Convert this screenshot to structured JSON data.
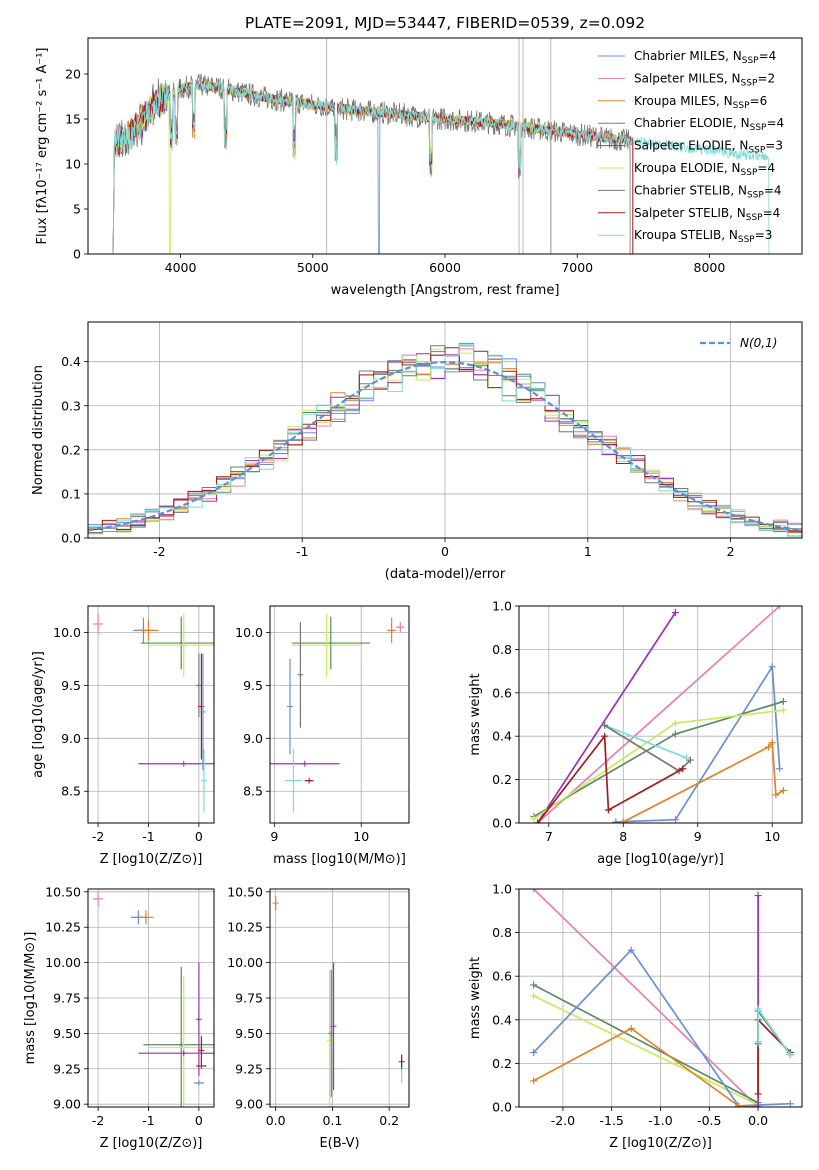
{
  "colors": {
    "Chabrier MILES": "#6a8fd6",
    "Salpeter MILES": "#e77fb5",
    "Kroupa MILES": "#e0822c",
    "Chabrier ELODIE": "#5d8a64",
    "Salpeter ELODIE": "#9b2fb8",
    "Kroupa ELODIE": "#c8ec5a",
    "Chabrier STELIB": "#767676",
    "Salpeter STELIB": "#a61c1c",
    "Kroupa STELIB": "#7fdcd8",
    "normal": "#5b8fd6"
  },
  "chart_data": [
    {
      "id": "spectrum",
      "type": "line",
      "title": "PLATE=2091, MJD=53447, FIBERID=0539, z=0.092",
      "xlabel": "wavelength [Angstrom, rest frame]",
      "ylabel": "Flux [fλ10⁻¹⁷ erg cm⁻² s⁻¹ A⁻¹]",
      "xlim": [
        3300,
        8700
      ],
      "ylim": [
        0,
        24
      ],
      "xticks": [
        4000,
        5000,
        6000,
        7000,
        8000
      ],
      "yticks": [
        0,
        5,
        10,
        15,
        20
      ],
      "legend_position": "upper right",
      "continuum_knots": {
        "x": [
          3500,
          3600,
          3700,
          3800,
          3900,
          4000,
          4100,
          4300,
          4500,
          4700,
          5000,
          5300,
          5600,
          6000,
          6400,
          6800,
          7200,
          7600,
          8000,
          8400
        ],
        "y": [
          12.4,
          12.8,
          14.5,
          16.4,
          17.5,
          18.3,
          18.8,
          18.5,
          17.8,
          17.2,
          16.6,
          16.0,
          15.6,
          15.0,
          14.5,
          13.7,
          12.9,
          12.2,
          11.5,
          10.8
        ]
      },
      "series": [
        {
          "name": "Chabrier MILES",
          "nssp": "4",
          "xmax": 7420
        },
        {
          "name": "Salpeter MILES",
          "nssp": "2",
          "xmax": 7420
        },
        {
          "name": "Kroupa MILES",
          "nssp": "6",
          "xmax": 7420
        },
        {
          "name": "Chabrier ELODIE",
          "nssp": "4",
          "xmax": 6800
        },
        {
          "name": "Salpeter ELODIE",
          "nssp": "3",
          "xmax": 6800
        },
        {
          "name": "Kroupa ELODIE",
          "nssp": "4",
          "xmax": 6800
        },
        {
          "name": "Chabrier STELIB",
          "nssp": "4",
          "xmax": 7400
        },
        {
          "name": "Salpeter STELIB",
          "nssp": "4",
          "xmax": 7420
        },
        {
          "name": "Kroupa STELIB",
          "nssp": "3",
          "xmax": 8450
        }
      ]
    },
    {
      "id": "residuals",
      "type": "histogram",
      "xlabel": "(data-model)/error",
      "ylabel": "Normed distribution",
      "xlim": [
        -2.5,
        2.5
      ],
      "ylim": [
        0,
        0.49
      ],
      "xticks": [
        -2,
        -1,
        0,
        1,
        2
      ],
      "yticks": [
        0.0,
        0.1,
        0.2,
        0.3,
        0.4
      ],
      "bin_width": 0.1,
      "legend_position": "upper right",
      "reference_curve": "N(0,1)"
    },
    {
      "id": "age_vs_Z",
      "type": "errorbar",
      "xlabel": "Z [log10(Z/Z⊙)]",
      "ylabel": "age [log10(age/yr)]",
      "xlim": [
        -2.2,
        0.3
      ],
      "ylim": [
        8.2,
        10.25
      ],
      "xticks": [
        -2,
        -1,
        0
      ],
      "yticks": [
        8.5,
        9.0,
        9.5,
        10.0
      ],
      "points": [
        {
          "s": "Salpeter MILES",
          "x": -2.0,
          "y": 10.08,
          "xe": 0.1,
          "ye": 0.1
        },
        {
          "s": "Chabrier MILES",
          "x": -1.1,
          "y": 10.02,
          "xe": 0.2,
          "ye": 0.12
        },
        {
          "s": "Kroupa MILES",
          "x": -1.0,
          "y": 10.02,
          "xe": 0.2,
          "ye": 0.1
        },
        {
          "s": "Chabrier ELODIE",
          "x": -0.35,
          "y": 9.9,
          "xe": 0.8,
          "ye": 0.25
        },
        {
          "s": "Kroupa ELODIE",
          "x": -0.3,
          "y": 9.88,
          "xe": 0.7,
          "ye": 0.3
        },
        {
          "s": "Salpeter ELODIE",
          "x": -0.3,
          "y": 8.76,
          "xe": 0.9,
          "ye": 0.0
        },
        {
          "s": "Chabrier STELIB",
          "x": 0.0,
          "y": 9.5,
          "xe": 0.0,
          "ye": 0.3
        },
        {
          "s": "Salpeter STELIB",
          "x": 0.05,
          "y": 9.3,
          "xe": 0.0,
          "ye": 0.5
        },
        {
          "s": "Kroupa STELIB",
          "x": 0.1,
          "y": 8.6,
          "xe": 0.05,
          "ye": 0.3
        },
        {
          "s": "Chabrier MILES",
          "x": 0.08,
          "y": 9.25,
          "xe": 0.0,
          "ye": 0.55
        }
      ]
    },
    {
      "id": "age_vs_mass",
      "type": "errorbar",
      "xlabel": "mass [log10(M/M⊙)]",
      "ylabel": "",
      "xlim": [
        8.95,
        10.55
      ],
      "ylim": [
        8.2,
        10.25
      ],
      "xticks": [
        9,
        10
      ],
      "yticks": [
        8.5,
        9.0,
        9.5,
        10.0
      ],
      "points": [
        {
          "s": "Salpeter MILES",
          "x": 10.45,
          "y": 10.05,
          "xe": 0.05,
          "ye": 0.05
        },
        {
          "s": "Kroupa MILES",
          "x": 10.35,
          "y": 10.02,
          "xe": 0.05,
          "ye": 0.12
        },
        {
          "s": "Chabrier ELODIE",
          "x": 9.65,
          "y": 9.9,
          "xe": 0.45,
          "ye": 0.25
        },
        {
          "s": "Kroupa ELODIE",
          "x": 9.6,
          "y": 9.88,
          "xe": 0.4,
          "ye": 0.3
        },
        {
          "s": "Salpeter ELODIE",
          "x": 9.35,
          "y": 8.76,
          "xe": 0.4,
          "ye": 0.0
        },
        {
          "s": "Chabrier MILES",
          "x": 9.18,
          "y": 9.3,
          "xe": 0.0,
          "ye": 0.45
        },
        {
          "s": "Kroupa STELIB",
          "x": 9.22,
          "y": 8.6,
          "xe": 0.1,
          "ye": 0.3
        },
        {
          "s": "Salpeter STELIB",
          "x": 9.4,
          "y": 8.6,
          "xe": 0.05,
          "ye": 0.0
        },
        {
          "s": "Chabrier STELIB",
          "x": 9.3,
          "y": 9.6,
          "xe": 0.0,
          "ye": 0.5
        }
      ]
    },
    {
      "id": "weight_vs_age",
      "type": "line",
      "xlabel": "age [log10(age/yr)]",
      "ylabel": "mass weight",
      "xlim": [
        6.6,
        10.4
      ],
      "ylim": [
        0,
        1.0
      ],
      "xticks": [
        7,
        8,
        9,
        10
      ],
      "yticks": [
        0.0,
        0.2,
        0.4,
        0.6,
        0.8,
        1.0
      ],
      "series": [
        {
          "s": "Salpeter ELODIE",
          "x": [
            6.85,
            8.7
          ],
          "y": [
            0.0,
            0.97
          ]
        },
        {
          "s": "Salpeter MILES",
          "x": [
            6.85,
            10.1
          ],
          "y": [
            0.0,
            1.0
          ]
        },
        {
          "s": "Chabrier MILES",
          "x": [
            7.9,
            8.7,
            10.0,
            10.1
          ],
          "y": [
            0.005,
            0.015,
            0.72,
            0.25
          ]
        },
        {
          "s": "Chabrier ELODIE",
          "x": [
            6.8,
            8.7,
            10.15
          ],
          "y": [
            0.03,
            0.41,
            0.56
          ]
        },
        {
          "s": "Kroupa ELODIE",
          "x": [
            6.8,
            8.7,
            10.15
          ],
          "y": [
            0.02,
            0.46,
            0.52
          ]
        },
        {
          "s": "Kroupa STELIB",
          "x": [
            7.75,
            8.85
          ],
          "y": [
            0.45,
            0.3
          ]
        },
        {
          "s": "Chabrier STELIB",
          "x": [
            7.75,
            8.75,
            8.9
          ],
          "y": [
            0.45,
            0.24,
            0.29
          ]
        },
        {
          "s": "Salpeter STELIB",
          "x": [
            6.85,
            7.75,
            7.8,
            8.8
          ],
          "y": [
            0.0,
            0.4,
            0.06,
            0.25
          ]
        },
        {
          "s": "Kroupa MILES",
          "x": [
            8.0,
            9.95,
            10.0,
            10.05,
            10.15
          ],
          "y": [
            0.005,
            0.35,
            0.37,
            0.13,
            0.15
          ]
        }
      ]
    },
    {
      "id": "mass_vs_Z",
      "type": "errorbar",
      "xlabel": "Z [log10(Z/Z⊙)]",
      "ylabel": "mass [log10(M/M⊙)]",
      "xlim": [
        -2.2,
        0.3
      ],
      "ylim": [
        8.98,
        10.52
      ],
      "xticks": [
        -2,
        -1,
        0
      ],
      "yticks": [
        9.0,
        9.25,
        9.5,
        9.75,
        10.0,
        10.25,
        10.5
      ],
      "points": [
        {
          "s": "Salpeter MILES",
          "x": -2.0,
          "y": 10.45,
          "xe": 0.1,
          "ye": 0.05
        },
        {
          "s": "Chabrier MILES",
          "x": -1.2,
          "y": 10.32,
          "xe": 0.15,
          "ye": 0.05
        },
        {
          "s": "Kroupa MILES",
          "x": -1.05,
          "y": 10.32,
          "xe": 0.15,
          "ye": 0.05
        },
        {
          "s": "Chabrier ELODIE",
          "x": -0.35,
          "y": 9.42,
          "xe": 0.75,
          "ye": 0.55
        },
        {
          "s": "Kroupa ELODIE",
          "x": -0.3,
          "y": 9.4,
          "xe": 0.7,
          "ye": 0.5
        },
        {
          "s": "Salpeter ELODIE",
          "x": -0.3,
          "y": 9.36,
          "xe": 0.9,
          "ye": 0.0
        },
        {
          "s": "Salpeter ELODIE",
          "x": 0.0,
          "y": 9.6,
          "xe": 0.0,
          "ye": 0.4
        },
        {
          "s": "Salpeter STELIB",
          "x": 0.05,
          "y": 9.38,
          "xe": 0.0,
          "ye": 0.1
        },
        {
          "s": "Chabrier MILES",
          "x": 0.0,
          "y": 9.15,
          "xe": 0.1,
          "ye": 0.0
        },
        {
          "s": "Salpeter STELIB",
          "x": 0.05,
          "y": 9.27,
          "xe": 0.1,
          "ye": 0.0
        }
      ]
    },
    {
      "id": "mass_vs_ebv",
      "type": "errorbar",
      "xlabel": "E(B-V)",
      "ylabel": "",
      "xlim": [
        -0.01,
        0.235
      ],
      "ylim": [
        8.98,
        10.52
      ],
      "xticks": [
        0.0,
        0.1,
        0.2
      ],
      "yticks": [
        9.0,
        9.25,
        9.5,
        9.75,
        10.0,
        10.25,
        10.5
      ],
      "points": [
        {
          "s": "Kroupa MILES",
          "x": 0.0,
          "y": 10.42,
          "xe": 0.0,
          "ye": 0.05
        },
        {
          "s": "Kroupa ELODIE",
          "x": 0.095,
          "y": 9.45,
          "xe": 0.0,
          "ye": 0.5
        },
        {
          "s": "Chabrier ELODIE",
          "x": 0.098,
          "y": 9.5,
          "xe": 0.0,
          "ye": 0.45
        },
        {
          "s": "Salpeter ELODIE",
          "x": 0.102,
          "y": 9.55,
          "xe": 0.0,
          "ye": 0.45
        },
        {
          "s": "Kroupa STELIB",
          "x": 0.222,
          "y": 9.25,
          "xe": 0.0,
          "ye": 0.1
        },
        {
          "s": "Salpeter STELIB",
          "x": 0.222,
          "y": 9.3,
          "xe": 0.0,
          "ye": 0.05
        }
      ]
    },
    {
      "id": "weight_vs_Z",
      "type": "line",
      "xlabel": "Z [log10(Z/Z⊙)]",
      "ylabel": "mass weight",
      "xlim": [
        -2.45,
        0.45
      ],
      "ylim": [
        0,
        1.0
      ],
      "xticks": [
        -2.0,
        -1.5,
        -1.0,
        -0.5,
        0.0
      ],
      "yticks": [
        0.0,
        0.2,
        0.4,
        0.6,
        0.8,
        1.0
      ],
      "series": [
        {
          "s": "Salpeter MILES",
          "x": [
            -2.3,
            0.0
          ],
          "y": [
            1.0,
            0.0
          ]
        },
        {
          "s": "Chabrier ELODIE",
          "x": [
            -2.3,
            0.0
          ],
          "y": [
            0.56,
            0.02
          ]
        },
        {
          "s": "Kroupa ELODIE",
          "x": [
            -2.3,
            0.0
          ],
          "y": [
            0.51,
            0.01
          ]
        },
        {
          "s": "Chabrier MILES",
          "x": [
            -2.3,
            -1.3,
            -0.2,
            0.33
          ],
          "y": [
            0.25,
            0.72,
            0.005,
            0.015
          ]
        },
        {
          "s": "Kroupa MILES",
          "x": [
            -2.3,
            -1.3,
            -0.2,
            0.0
          ],
          "y": [
            0.12,
            0.36,
            0.005,
            0.0
          ]
        },
        {
          "s": "Salpeter ELODIE",
          "x": [
            0.0,
            0.0
          ],
          "y": [
            0.0,
            0.97
          ]
        },
        {
          "s": "Salpeter STELIB",
          "x": [
            0.0,
            0.0,
            0.33
          ],
          "y": [
            0.06,
            0.4,
            0.25
          ]
        },
        {
          "s": "Chabrier STELIB",
          "x": [
            0.0,
            0.0,
            0.33
          ],
          "y": [
            0.29,
            0.44,
            0.24
          ]
        },
        {
          "s": "Kroupa STELIB",
          "x": [
            0.0,
            0.0,
            0.33
          ],
          "y": [
            0.3,
            0.45,
            0.24
          ]
        }
      ]
    }
  ]
}
